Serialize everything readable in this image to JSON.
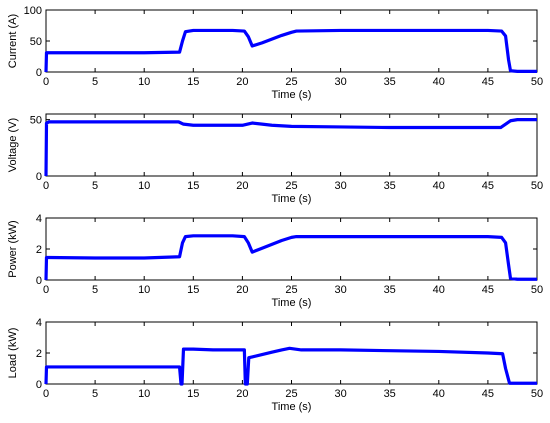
{
  "chart_data": [
    {
      "type": "line",
      "ylabel": "Current (A)",
      "xlabel": "Time (s)",
      "xlim": [
        0,
        50
      ],
      "ylim": [
        0,
        100
      ],
      "xticks": [
        "0",
        "5",
        "10",
        "15",
        "20",
        "25",
        "30",
        "35",
        "40",
        "45",
        "50"
      ],
      "yticks": [
        "0",
        "50",
        "100"
      ],
      "ytick_values": [
        0,
        50,
        100
      ],
      "grid": false,
      "color": "#0000ff",
      "series": [
        {
          "x": [
            0,
            0.05,
            0.3,
            5,
            10,
            13.6,
            13.9,
            14.2,
            15,
            17,
            19,
            20.2,
            20.6,
            21.0,
            22,
            23,
            24,
            25,
            25.5,
            30,
            35,
            40,
            45,
            46.4,
            46.8,
            47.1,
            47.3,
            48,
            50
          ],
          "y": [
            0,
            31,
            31,
            31,
            31,
            32,
            50,
            65,
            67,
            67,
            67,
            66,
            57,
            42,
            47,
            53,
            59,
            64,
            66,
            67,
            67,
            67,
            67,
            66,
            58,
            20,
            2,
            1,
            1
          ]
        }
      ]
    },
    {
      "type": "line",
      "ylabel": "Voltage (V)",
      "xlabel": "Time (s)",
      "xlim": [
        0,
        50
      ],
      "ylim": [
        0,
        55
      ],
      "xticks": [
        "0",
        "5",
        "10",
        "15",
        "20",
        "25",
        "30",
        "35",
        "40",
        "45",
        "50"
      ],
      "yticks": [
        "0",
        "50"
      ],
      "ytick_values": [
        0,
        50
      ],
      "grid": false,
      "color": "#0000ff",
      "series": [
        {
          "x": [
            0,
            0.05,
            0.3,
            5,
            10,
            13.5,
            14,
            15,
            18,
            20,
            21,
            22,
            23,
            25,
            30,
            35,
            40,
            45,
            46.3,
            46.8,
            47.3,
            48,
            50
          ],
          "y": [
            0,
            47,
            48,
            48,
            48,
            48,
            46,
            45,
            45,
            45,
            47,
            46,
            45,
            44,
            43.5,
            43,
            43,
            43,
            43,
            46,
            49,
            50,
            50
          ]
        }
      ]
    },
    {
      "type": "line",
      "ylabel": "Power (kW)",
      "xlabel": "Time (s)",
      "xlim": [
        0,
        50
      ],
      "ylim": [
        0,
        4
      ],
      "xticks": [
        "0",
        "5",
        "10",
        "15",
        "20",
        "25",
        "30",
        "35",
        "40",
        "45",
        "50"
      ],
      "yticks": [
        "0",
        "2",
        "4"
      ],
      "ytick_values": [
        0,
        2,
        4
      ],
      "grid": false,
      "color": "#0000ff",
      "series": [
        {
          "x": [
            0,
            0.05,
            0.3,
            5,
            10,
            13.6,
            13.9,
            14.2,
            15,
            17,
            19,
            20.2,
            20.6,
            21.0,
            22,
            23,
            24,
            25,
            25.5,
            30,
            35,
            40,
            45,
            46.4,
            46.8,
            47.1,
            47.3,
            48,
            50
          ],
          "y": [
            0,
            1.45,
            1.45,
            1.42,
            1.42,
            1.5,
            2.4,
            2.8,
            2.85,
            2.85,
            2.85,
            2.8,
            2.4,
            1.8,
            2.05,
            2.3,
            2.55,
            2.75,
            2.8,
            2.8,
            2.8,
            2.8,
            2.8,
            2.75,
            2.4,
            1.0,
            0.1,
            0.05,
            0.05
          ]
        }
      ]
    },
    {
      "type": "line",
      "ylabel": "Load (kW)",
      "xlabel": "Time (s)",
      "xlim": [
        0,
        50
      ],
      "ylim": [
        0,
        4
      ],
      "xticks": [
        "0",
        "5",
        "10",
        "15",
        "20",
        "25",
        "30",
        "35",
        "40",
        "45",
        "50"
      ],
      "yticks": [
        "0",
        "2",
        "4"
      ],
      "ytick_values": [
        0,
        2,
        4
      ],
      "grid": false,
      "color": "#0000ff",
      "series": [
        {
          "x": [
            0,
            0.05,
            0.3,
            5,
            10,
            13.6,
            13.75,
            13.85,
            14.0,
            15,
            17,
            19,
            20.2,
            20.3,
            20.5,
            20.65,
            21,
            22,
            23,
            24,
            24.8,
            26,
            30,
            35,
            40,
            45,
            46.5,
            46.8,
            47.2,
            48,
            50
          ],
          "y": [
            0,
            1.1,
            1.1,
            1.1,
            1.1,
            1.1,
            0,
            0,
            2.25,
            2.25,
            2.2,
            2.2,
            2.2,
            0,
            0,
            1.7,
            1.75,
            1.9,
            2.05,
            2.2,
            2.3,
            2.2,
            2.2,
            2.15,
            2.1,
            2.0,
            1.95,
            1.0,
            0.05,
            0.05,
            0.05
          ]
        }
      ]
    }
  ]
}
